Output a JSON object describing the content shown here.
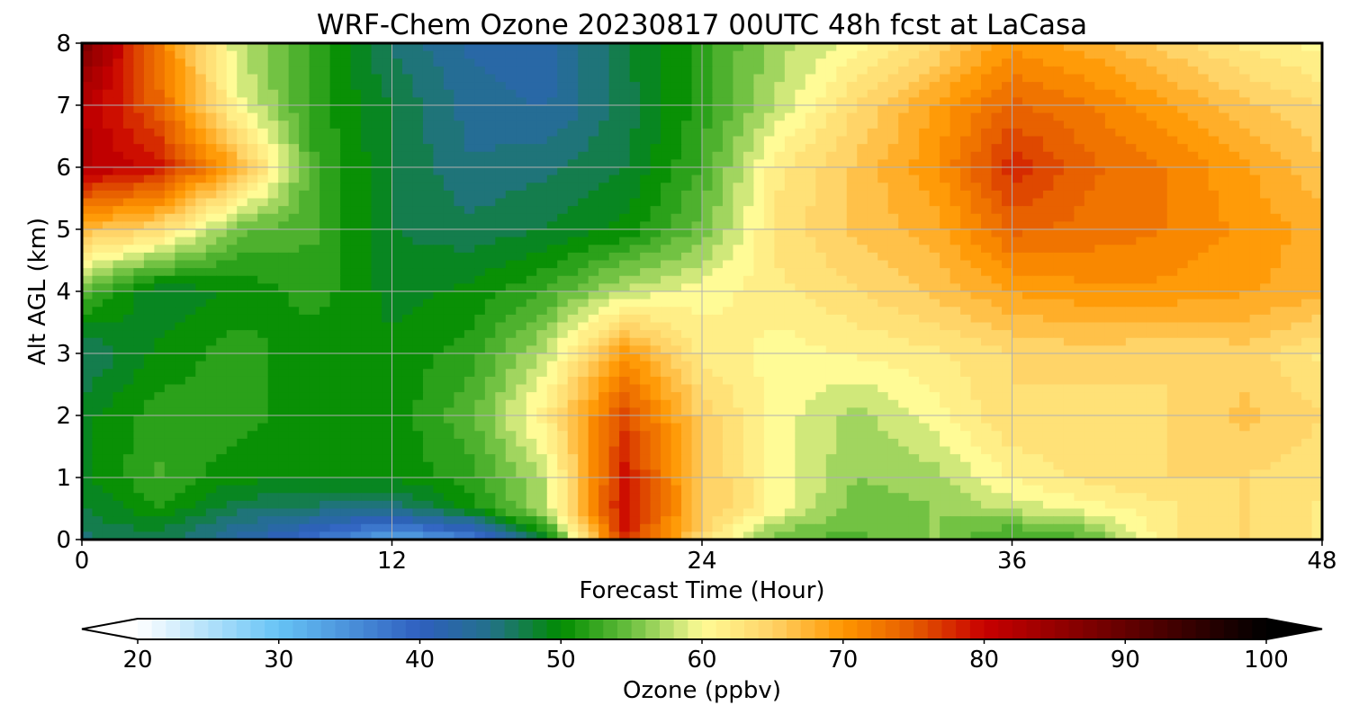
{
  "chart_data": {
    "type": "heatmap",
    "title": "WRF-Chem Ozone  20230817 00UTC 48h fcst at LaCasa",
    "xlabel": "Forecast Time (Hour)",
    "ylabel": "Alt AGL (km)",
    "xlim": [
      0,
      48
    ],
    "ylim": [
      0,
      8
    ],
    "xticks": [
      "0",
      "12",
      "24",
      "36",
      "48"
    ],
    "yticks": [
      "0",
      "1",
      "2",
      "3",
      "4",
      "5",
      "6",
      "7",
      "8"
    ],
    "grid": true,
    "colorbar": {
      "label": "Ozone  (ppbv)",
      "range": [
        20,
        100
      ],
      "extend": "both",
      "ticks": [
        "20",
        "30",
        "40",
        "50",
        "60",
        "70",
        "80",
        "90",
        "100"
      ],
      "stops": [
        {
          "v": 20,
          "c": "#ffffff"
        },
        {
          "v": 30,
          "c": "#66c3f5"
        },
        {
          "v": 40,
          "c": "#2f5fbf"
        },
        {
          "v": 45,
          "c": "#23718a"
        },
        {
          "v": 50,
          "c": "#008c00"
        },
        {
          "v": 55,
          "c": "#6cc040"
        },
        {
          "v": 60,
          "c": "#fffb96"
        },
        {
          "v": 65,
          "c": "#ffd266"
        },
        {
          "v": 70,
          "c": "#ff9600"
        },
        {
          "v": 75,
          "c": "#e55a00"
        },
        {
          "v": 80,
          "c": "#c80000"
        },
        {
          "v": 90,
          "c": "#640000"
        },
        {
          "v": 100,
          "c": "#000000"
        }
      ]
    },
    "x": [
      0,
      3,
      6,
      9,
      12,
      15,
      18,
      21,
      24,
      27,
      30,
      33,
      36,
      39,
      42,
      45,
      48
    ],
    "y": [
      0,
      0.5,
      1,
      2,
      3,
      4,
      5,
      6,
      7,
      8
    ],
    "z": [
      [
        46,
        47,
        43,
        38,
        32,
        36,
        49,
        78,
        64,
        54,
        54,
        56,
        52,
        54,
        62,
        64,
        62
      ],
      [
        48,
        51,
        47,
        46,
        45,
        50,
        58,
        80,
        66,
        60,
        55,
        56,
        58,
        60,
        62,
        64,
        62
      ],
      [
        49,
        53,
        50,
        50,
        50,
        52,
        58,
        79,
        66,
        60,
        56,
        57,
        61,
        63,
        64,
        64,
        63
      ],
      [
        49,
        52,
        52,
        50,
        50,
        54,
        62,
        76,
        65,
        60,
        57,
        60,
        64,
        63,
        64,
        66,
        64
      ],
      [
        46,
        50,
        52,
        50,
        50,
        52,
        58,
        70,
        62,
        60,
        61,
        62,
        64,
        65,
        64,
        65,
        62
      ],
      [
        54,
        48,
        50,
        52,
        49,
        50,
        53,
        58,
        60,
        62,
        64,
        66,
        69,
        70,
        70,
        69,
        68
      ],
      [
        67,
        64,
        55,
        53,
        48,
        47,
        48,
        50,
        55,
        63,
        66,
        68,
        74,
        73,
        72,
        70,
        68
      ],
      [
        82,
        79,
        68,
        53,
        48,
        45,
        46,
        48,
        53,
        62,
        66,
        70,
        78,
        74,
        72,
        69,
        66
      ],
      [
        82,
        74,
        60,
        52,
        48,
        44,
        43,
        47,
        52,
        58,
        64,
        69,
        74,
        72,
        69,
        66,
        64
      ],
      [
        88,
        72,
        58,
        52,
        46,
        43,
        42,
        48,
        52,
        57,
        60,
        64,
        70,
        68,
        65,
        62,
        60
      ]
    ]
  }
}
